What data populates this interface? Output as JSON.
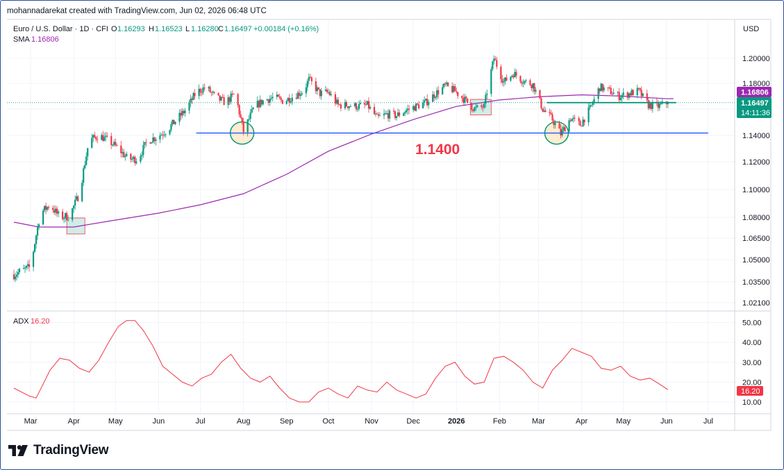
{
  "header": {
    "attribution": "mohannadarekat created with TradingView.com, Jun 02, 2026 06:48 UTC"
  },
  "legend": {
    "symbol": "Euro / U.S. Dollar · 1D · CFI",
    "open_label": "O",
    "open": "1.16293",
    "high_label": "H",
    "high": "1.16523",
    "low_label": "L",
    "low": "1.16280",
    "close_label": "C",
    "close": "1.16497",
    "change": "+0.00184 (+0.16%)",
    "sma_label": "SMA",
    "sma_value": "1.16806",
    "adx_label": "ADX",
    "adx_value": "16.20"
  },
  "price_axis": {
    "currency": "USD",
    "ticks": [
      "1.20000",
      "1.18000",
      "1.16000",
      "1.14000",
      "1.12000",
      "1.10000",
      "1.08000",
      "1.06500",
      "1.05000",
      "1.03500",
      "1.02100"
    ],
    "sma_badge": "1.16806",
    "price_badge": "1.16497",
    "countdown": "14:11:36"
  },
  "adx_axis": {
    "ticks": [
      "50.00",
      "40.00",
      "30.00",
      "20.00",
      "10.00"
    ],
    "badge": "16.20"
  },
  "time_axis": {
    "labels": [
      "Mar",
      "Apr",
      "May",
      "Jun",
      "Jul",
      "Aug",
      "Sep",
      "Oct",
      "Nov",
      "Dec",
      "2026",
      "Feb",
      "Mar",
      "Apr",
      "May",
      "Jun",
      "Jul"
    ]
  },
  "annotation": {
    "support_label": "1.1400"
  },
  "brand": {
    "name": "TradingView",
    "logo_icon": "tradingview-logo-icon"
  },
  "colors": {
    "up": "#089981",
    "down": "#f23645",
    "sma": "#9c27b0",
    "adx": "#f23645",
    "support_line": "#2962ff",
    "support_text": "#f23645",
    "current_price": "#089981"
  },
  "chart_data": [
    {
      "type": "candlestick",
      "title": "Euro / U.S. Dollar · 1D · CFI",
      "x_range": [
        "2025-02-17",
        "2026-07-20"
      ],
      "ylim": [
        1.015,
        1.215
      ],
      "x_ticks": [
        "Mar",
        "Apr",
        "May",
        "Jun",
        "Jul",
        "Aug",
        "Sep",
        "Oct",
        "Nov",
        "Dec",
        "2026",
        "Feb",
        "Mar",
        "Apr",
        "May",
        "Jun",
        "Jul"
      ],
      "series": [
        {
          "name": "EUR/USD close (approx.)",
          "points": [
            [
              "2025-02-17",
              1.04
            ],
            [
              "2025-03-01",
              1.045
            ],
            [
              "2025-03-04",
              1.062
            ],
            [
              "2025-03-08",
              1.083
            ],
            [
              "2025-03-15",
              1.089
            ],
            [
              "2025-03-22",
              1.08
            ],
            [
              "2025-03-29",
              1.081
            ],
            [
              "2025-04-05",
              1.097
            ],
            [
              "2025-04-12",
              1.136
            ],
            [
              "2025-04-19",
              1.14
            ],
            [
              "2025-04-26",
              1.136
            ],
            [
              "2025-05-03",
              1.13
            ],
            [
              "2025-05-10",
              1.122
            ],
            [
              "2025-05-17",
              1.122
            ],
            [
              "2025-05-24",
              1.136
            ],
            [
              "2025-05-31",
              1.139
            ],
            [
              "2025-06-07",
              1.144
            ],
            [
              "2025-06-14",
              1.152
            ],
            [
              "2025-06-21",
              1.16
            ],
            [
              "2025-06-28",
              1.173
            ],
            [
              "2025-07-05",
              1.177
            ],
            [
              "2025-07-12",
              1.169
            ],
            [
              "2025-07-19",
              1.165
            ],
            [
              "2025-07-26",
              1.172
            ],
            [
              "2025-08-01",
              1.143
            ],
            [
              "2025-08-09",
              1.162
            ],
            [
              "2025-08-16",
              1.167
            ],
            [
              "2025-08-23",
              1.169
            ],
            [
              "2025-08-30",
              1.166
            ],
            [
              "2025-09-06",
              1.17
            ],
            [
              "2025-09-13",
              1.174
            ],
            [
              "2025-09-17",
              1.183
            ],
            [
              "2025-09-25",
              1.172
            ],
            [
              "2025-10-01",
              1.173
            ],
            [
              "2025-10-08",
              1.163
            ],
            [
              "2025-10-15",
              1.163
            ],
            [
              "2025-10-22",
              1.162
            ],
            [
              "2025-10-29",
              1.163
            ],
            [
              "2025-11-05",
              1.153
            ],
            [
              "2025-11-12",
              1.156
            ],
            [
              "2025-11-19",
              1.155
            ],
            [
              "2025-11-26",
              1.159
            ],
            [
              "2025-12-03",
              1.162
            ],
            [
              "2025-12-10",
              1.165
            ],
            [
              "2025-12-17",
              1.172
            ],
            [
              "2025-12-24",
              1.178
            ],
            [
              "2025-12-31",
              1.174
            ],
            [
              "2026-01-07",
              1.167
            ],
            [
              "2026-01-14",
              1.16
            ],
            [
              "2026-01-21",
              1.162
            ],
            [
              "2026-01-25",
              1.185
            ],
            [
              "2026-01-28",
              1.2
            ],
            [
              "2026-02-04",
              1.181
            ],
            [
              "2026-02-11",
              1.188
            ],
            [
              "2026-02-18",
              1.182
            ],
            [
              "2026-02-25",
              1.179
            ],
            [
              "2026-03-04",
              1.16
            ],
            [
              "2026-03-11",
              1.152
            ],
            [
              "2026-03-17",
              1.141
            ],
            [
              "2026-03-24",
              1.153
            ],
            [
              "2026-03-31",
              1.148
            ],
            [
              "2026-04-07",
              1.16
            ],
            [
              "2026-04-14",
              1.177
            ],
            [
              "2026-04-21",
              1.174
            ],
            [
              "2026-04-28",
              1.17
            ],
            [
              "2026-05-05",
              1.172
            ],
            [
              "2026-05-12",
              1.174
            ],
            [
              "2026-05-19",
              1.163
            ],
            [
              "2026-05-26",
              1.162
            ],
            [
              "2026-06-02",
              1.16497
            ]
          ]
        },
        {
          "name": "SMA",
          "points": [
            [
              "2025-02-17",
              1.0765
            ],
            [
              "2025-03-07",
              1.073
            ],
            [
              "2025-04-01",
              1.073
            ],
            [
              "2025-05-01",
              1.078
            ],
            [
              "2025-06-01",
              1.083
            ],
            [
              "2025-07-01",
              1.089
            ],
            [
              "2025-08-01",
              1.097
            ],
            [
              "2025-09-01",
              1.111
            ],
            [
              "2025-10-01",
              1.128
            ],
            [
              "2025-11-01",
              1.141
            ],
            [
              "2025-12-01",
              1.152
            ],
            [
              "2026-01-01",
              1.162
            ],
            [
              "2026-02-01",
              1.167
            ],
            [
              "2026-03-01",
              1.1695
            ],
            [
              "2026-04-01",
              1.171
            ],
            [
              "2026-05-01",
              1.17
            ],
            [
              "2026-06-01",
              1.168
            ],
            [
              "2026-06-06",
              1.16806
            ]
          ]
        }
      ],
      "horizontal_lines": [
        {
          "value": 1.1418,
          "from": "2025-06-28",
          "to": "2026-07-01",
          "label": "1.1400"
        },
        {
          "value": 1.16497,
          "from": "2026-03-07",
          "to": "2026-06-08"
        }
      ],
      "highlight_boxes": [
        {
          "from": "2025-03-27",
          "to": "2025-04-09",
          "low": 1.068,
          "high": 1.0795
        },
        {
          "from": "2026-01-11",
          "to": "2026-01-26",
          "low": 1.1555,
          "high": 1.1675
        }
      ],
      "highlight_circles": [
        {
          "date": "2025-07-31",
          "value": 1.1418
        },
        {
          "date": "2026-03-14",
          "value": 1.1418
        }
      ]
    },
    {
      "type": "line",
      "title": "ADX",
      "ylim": [
        0,
        55
      ],
      "y_ticks": [
        50,
        40,
        30,
        20,
        10
      ],
      "series": [
        {
          "name": "ADX",
          "points": [
            [
              "2025-02-17",
              17
            ],
            [
              "2025-02-28",
              13
            ],
            [
              "2025-03-05",
              12
            ],
            [
              "2025-03-15",
              26
            ],
            [
              "2025-03-22",
              32
            ],
            [
              "2025-03-29",
              31
            ],
            [
              "2025-04-05",
              27
            ],
            [
              "2025-04-12",
              25
            ],
            [
              "2025-04-19",
              31
            ],
            [
              "2025-04-26",
              40
            ],
            [
              "2025-05-03",
              48
            ],
            [
              "2025-05-09",
              51
            ],
            [
              "2025-05-15",
              51
            ],
            [
              "2025-05-21",
              46
            ],
            [
              "2025-05-28",
              38
            ],
            [
              "2025-06-04",
              28
            ],
            [
              "2025-06-11",
              24
            ],
            [
              "2025-06-18",
              20
            ],
            [
              "2025-06-25",
              18
            ],
            [
              "2025-07-02",
              22
            ],
            [
              "2025-07-09",
              24
            ],
            [
              "2025-07-16",
              30
            ],
            [
              "2025-07-23",
              34
            ],
            [
              "2025-07-30",
              27
            ],
            [
              "2025-08-06",
              22
            ],
            [
              "2025-08-13",
              20
            ],
            [
              "2025-08-20",
              23
            ],
            [
              "2025-08-27",
              17
            ],
            [
              "2025-09-03",
              12
            ],
            [
              "2025-09-10",
              10
            ],
            [
              "2025-09-17",
              10
            ],
            [
              "2025-09-24",
              15
            ],
            [
              "2025-10-01",
              17
            ],
            [
              "2025-10-08",
              14
            ],
            [
              "2025-10-15",
              12
            ],
            [
              "2025-10-22",
              18
            ],
            [
              "2025-10-29",
              16
            ],
            [
              "2025-11-05",
              15
            ],
            [
              "2025-11-12",
              20
            ],
            [
              "2025-11-19",
              16
            ],
            [
              "2025-11-26",
              14
            ],
            [
              "2025-12-03",
              12
            ],
            [
              "2025-12-10",
              14
            ],
            [
              "2025-12-17",
              22
            ],
            [
              "2025-12-24",
              28
            ],
            [
              "2025-12-31",
              30
            ],
            [
              "2026-01-07",
              23
            ],
            [
              "2026-01-14",
              19
            ],
            [
              "2026-01-21",
              20
            ],
            [
              "2026-01-28",
              32
            ],
            [
              "2026-02-04",
              33
            ],
            [
              "2026-02-11",
              30
            ],
            [
              "2026-02-18",
              26
            ],
            [
              "2026-02-25",
              20
            ],
            [
              "2026-03-04",
              17
            ],
            [
              "2026-03-11",
              26
            ],
            [
              "2026-03-18",
              31
            ],
            [
              "2026-03-25",
              37
            ],
            [
              "2026-04-01",
              35
            ],
            [
              "2026-04-08",
              33
            ],
            [
              "2026-04-15",
              27
            ],
            [
              "2026-04-22",
              26
            ],
            [
              "2026-04-29",
              28
            ],
            [
              "2026-05-06",
              23
            ],
            [
              "2026-05-13",
              21
            ],
            [
              "2026-05-20",
              22
            ],
            [
              "2026-05-27",
              19
            ],
            [
              "2026-06-02",
              16.2
            ]
          ]
        }
      ]
    }
  ]
}
